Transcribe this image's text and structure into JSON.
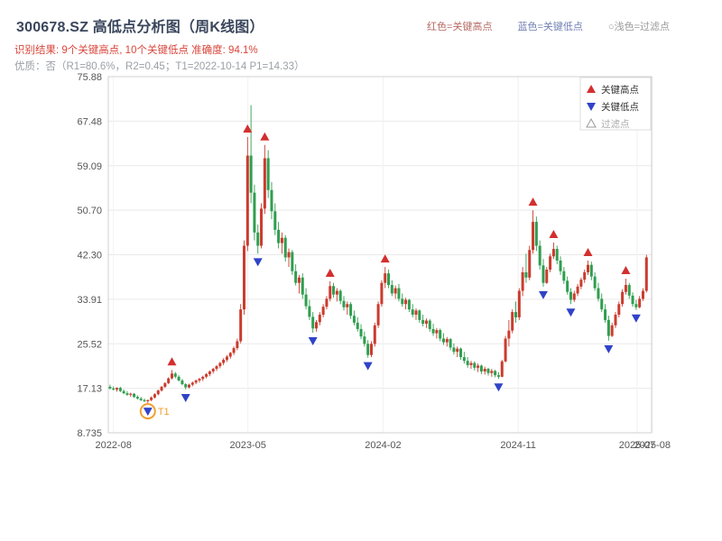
{
  "header": {
    "title": "300678.SZ 高低点分析图（周K线图）",
    "legend_inline": [
      {
        "label": "红色=关键高点",
        "color": "#b56a64"
      },
      {
        "label": "蓝色=关键低点",
        "color": "#7280b5"
      },
      {
        "label": "○浅色=过滤点",
        "color": "#999999"
      }
    ],
    "result_line": "识别结果: 9个关键高点, 10个关键低点  准确度: 94.1%",
    "quality_line": "优质：否（R1=80.6%，R2=0.45；T1=2022-10-14 P1=14.33）"
  },
  "chart_data": {
    "type": "candlestick",
    "title": "300678.SZ 高低点分析图（周K线图）",
    "frequency": "weekly",
    "start_date": "2022-07-25",
    "axis_weeks": 158,
    "ylim": [
      8.735,
      75.88
    ],
    "yticks": [
      "8.735",
      "17.13",
      "25.52",
      "33.91",
      "42.30",
      "50.70",
      "59.09",
      "67.48",
      "75.88"
    ],
    "xticks": [
      {
        "label": "2022-08",
        "week": 1
      },
      {
        "label": "2023-05",
        "week": 40.1
      },
      {
        "label": "2024-02",
        "week": 79.4
      },
      {
        "label": "2024-11",
        "week": 118.7
      },
      {
        "label": "2025-07",
        "week": 153.3
      },
      {
        "label": "2025-08",
        "week": 157.7
      }
    ],
    "up_color": "#cb3b2e",
    "down_color": "#2f9e4f",
    "key_high_color": "#d32f2f",
    "key_low_color": "#2f43c8",
    "grid": true,
    "legend_position": "top-right",
    "legend": [
      {
        "label": "关键高点",
        "marker": "up-triangle",
        "color": "#d32f2f",
        "text_color": "#333333"
      },
      {
        "label": "关键低点",
        "marker": "down-triangle",
        "color": "#2f43c8",
        "text_color": "#333333"
      },
      {
        "label": "过滤点",
        "marker": "hollow-up-triangle",
        "color": "#999999",
        "text_color": "#aaaaaa"
      }
    ],
    "candles": [
      [
        17.4,
        17.8,
        16.9,
        17.1
      ],
      [
        17.1,
        17.5,
        16.7,
        16.9
      ],
      [
        16.9,
        17.3,
        16.5,
        17.2
      ],
      [
        17.2,
        17.4,
        16.4,
        16.6
      ],
      [
        16.6,
        16.9,
        16.0,
        16.2
      ],
      [
        16.2,
        16.6,
        15.7,
        15.9
      ],
      [
        15.9,
        16.3,
        15.5,
        16.1
      ],
      [
        16.1,
        16.2,
        15.3,
        15.5
      ],
      [
        15.5,
        15.8,
        15.0,
        15.2
      ],
      [
        15.2,
        15.5,
        14.7,
        14.9
      ],
      [
        14.9,
        15.2,
        14.5,
        14.7
      ],
      [
        14.7,
        15.0,
        14.33,
        14.9
      ],
      [
        14.9,
        15.6,
        14.7,
        15.4
      ],
      [
        15.4,
        16.2,
        15.2,
        16.0
      ],
      [
        16.0,
        16.9,
        15.8,
        16.7
      ],
      [
        16.7,
        17.6,
        16.5,
        17.4
      ],
      [
        17.4,
        18.3,
        17.2,
        18.1
      ],
      [
        18.1,
        19.2,
        17.9,
        19.0
      ],
      [
        19.0,
        20.6,
        18.8,
        19.9
      ],
      [
        19.9,
        20.2,
        19.0,
        19.3
      ],
      [
        19.3,
        19.6,
        18.4,
        18.6
      ],
      [
        18.6,
        18.9,
        17.7,
        17.9
      ],
      [
        17.9,
        18.1,
        16.9,
        17.3
      ],
      [
        17.3,
        18.0,
        17.1,
        17.8
      ],
      [
        17.8,
        18.4,
        17.5,
        18.2
      ],
      [
        18.2,
        18.8,
        17.9,
        18.6
      ],
      [
        18.6,
        19.1,
        18.2,
        18.9
      ],
      [
        18.9,
        19.5,
        18.5,
        19.3
      ],
      [
        19.3,
        20.0,
        19.0,
        19.8
      ],
      [
        19.8,
        20.5,
        19.4,
        20.3
      ],
      [
        20.3,
        21.0,
        19.9,
        20.8
      ],
      [
        20.8,
        21.5,
        20.4,
        21.3
      ],
      [
        21.3,
        22.1,
        20.9,
        21.9
      ],
      [
        21.9,
        22.8,
        21.5,
        22.5
      ],
      [
        22.5,
        23.4,
        22.1,
        23.1
      ],
      [
        23.1,
        24.0,
        22.7,
        23.8
      ],
      [
        23.8,
        25.0,
        23.4,
        24.7
      ],
      [
        24.7,
        26.5,
        24.3,
        26.0
      ],
      [
        26.0,
        33.0,
        25.6,
        32.0
      ],
      [
        32.0,
        45.0,
        31.0,
        44.0
      ],
      [
        44.0,
        64.5,
        43.0,
        61.0
      ],
      [
        61.0,
        70.5,
        52.0,
        54.0
      ],
      [
        54.0,
        55.5,
        45.0,
        46.5
      ],
      [
        46.5,
        48.0,
        42.5,
        44.0
      ],
      [
        44.0,
        52.0,
        43.5,
        51.0
      ],
      [
        51.0,
        63.0,
        50.0,
        60.5
      ],
      [
        60.5,
        62.0,
        53.0,
        54.5
      ],
      [
        54.5,
        56.0,
        49.0,
        50.5
      ],
      [
        50.5,
        52.0,
        46.0,
        47.0
      ],
      [
        47.0,
        48.5,
        43.5,
        44.5
      ],
      [
        44.5,
        46.5,
        42.5,
        45.5
      ],
      [
        45.5,
        46.0,
        41.0,
        41.8
      ],
      [
        41.8,
        43.5,
        40.0,
        42.8
      ],
      [
        42.8,
        43.2,
        38.5,
        39.2
      ],
      [
        39.2,
        40.5,
        36.5,
        37.0
      ],
      [
        37.0,
        38.5,
        35.0,
        38.0
      ],
      [
        38.0,
        38.8,
        34.0,
        34.8
      ],
      [
        34.8,
        36.0,
        32.0,
        32.6
      ],
      [
        32.6,
        33.8,
        30.0,
        30.6
      ],
      [
        30.6,
        31.5,
        27.6,
        28.4
      ],
      [
        28.4,
        30.0,
        27.8,
        29.6
      ],
      [
        29.6,
        31.5,
        29.0,
        31.0
      ],
      [
        31.0,
        33.0,
        30.5,
        32.5
      ],
      [
        32.5,
        34.5,
        32.0,
        34.0
      ],
      [
        34.0,
        37.3,
        33.5,
        36.4
      ],
      [
        36.4,
        37.0,
        34.2,
        34.8
      ],
      [
        34.8,
        36.0,
        33.5,
        35.5
      ],
      [
        35.5,
        35.8,
        33.0,
        33.6
      ],
      [
        33.6,
        34.5,
        31.8,
        32.4
      ],
      [
        32.4,
        33.5,
        31.0,
        33.0
      ],
      [
        33.0,
        33.4,
        30.2,
        30.8
      ],
      [
        30.8,
        31.8,
        29.0,
        29.5
      ],
      [
        29.5,
        30.5,
        27.8,
        28.3
      ],
      [
        28.3,
        29.2,
        26.4,
        26.9
      ],
      [
        26.9,
        27.8,
        25.0,
        25.5
      ],
      [
        25.5,
        26.2,
        22.9,
        23.4
      ],
      [
        23.4,
        26.0,
        23.0,
        25.5
      ],
      [
        25.5,
        29.5,
        25.0,
        29.0
      ],
      [
        29.0,
        33.5,
        28.5,
        33.0
      ],
      [
        33.0,
        37.5,
        32.5,
        37.0
      ],
      [
        37.0,
        40.0,
        36.0,
        38.8
      ],
      [
        38.8,
        39.5,
        36.0,
        36.6
      ],
      [
        36.6,
        37.5,
        34.5,
        35.0
      ],
      [
        35.0,
        36.5,
        34.0,
        36.0
      ],
      [
        36.0,
        36.8,
        33.5,
        34.0
      ],
      [
        34.0,
        35.0,
        32.5,
        33.0
      ],
      [
        33.0,
        34.2,
        32.0,
        33.8
      ],
      [
        33.8,
        34.0,
        31.5,
        32.0
      ],
      [
        32.0,
        33.0,
        30.5,
        31.0
      ],
      [
        31.0,
        32.2,
        30.0,
        31.8
      ],
      [
        31.8,
        32.0,
        29.5,
        30.0
      ],
      [
        30.0,
        31.0,
        28.8,
        29.3
      ],
      [
        29.3,
        30.3,
        28.5,
        29.9
      ],
      [
        29.9,
        30.2,
        27.8,
        28.3
      ],
      [
        28.3,
        29.3,
        27.0,
        27.5
      ],
      [
        27.5,
        28.5,
        26.5,
        28.1
      ],
      [
        28.1,
        28.4,
        26.0,
        26.5
      ],
      [
        26.5,
        27.5,
        25.3,
        25.8
      ],
      [
        25.8,
        26.8,
        25.0,
        26.4
      ],
      [
        26.4,
        26.6,
        24.3,
        24.8
      ],
      [
        24.8,
        25.6,
        23.5,
        24.0
      ],
      [
        24.0,
        25.0,
        23.0,
        24.6
      ],
      [
        24.6,
        24.8,
        22.5,
        23.0
      ],
      [
        23.0,
        24.0,
        21.8,
        22.3
      ],
      [
        22.3,
        23.0,
        21.0,
        21.5
      ],
      [
        21.5,
        22.3,
        20.8,
        21.9
      ],
      [
        21.9,
        22.2,
        20.5,
        21.0
      ],
      [
        21.0,
        21.8,
        20.2,
        21.4
      ],
      [
        21.4,
        21.6,
        19.8,
        20.3
      ],
      [
        20.3,
        21.2,
        19.7,
        20.8
      ],
      [
        20.8,
        21.0,
        19.5,
        20.0
      ],
      [
        20.0,
        20.8,
        19.3,
        20.4
      ],
      [
        20.4,
        20.6,
        19.2,
        19.6
      ],
      [
        19.6,
        20.2,
        18.9,
        19.3
      ],
      [
        19.3,
        22.5,
        19.2,
        22.2
      ],
      [
        22.2,
        27.0,
        22.0,
        26.5
      ],
      [
        26.5,
        30.0,
        25.0,
        28.0
      ],
      [
        28.0,
        32.0,
        27.5,
        31.5
      ],
      [
        31.5,
        33.5,
        29.5,
        30.5
      ],
      [
        30.5,
        36.0,
        30.0,
        35.5
      ],
      [
        35.5,
        40.0,
        34.5,
        39.0
      ],
      [
        39.0,
        42.5,
        37.0,
        38.0
      ],
      [
        38.0,
        44.0,
        37.5,
        43.2
      ],
      [
        43.2,
        50.7,
        42.5,
        48.5
      ],
      [
        48.5,
        49.5,
        43.0,
        44.0
      ],
      [
        44.0,
        45.0,
        39.5,
        40.3
      ],
      [
        40.3,
        41.5,
        36.3,
        37.0
      ],
      [
        37.0,
        40.0,
        36.8,
        39.5
      ],
      [
        39.5,
        42.5,
        39.0,
        42.0
      ],
      [
        42.0,
        44.6,
        41.5,
        43.4
      ],
      [
        43.4,
        44.0,
        40.5,
        41.2
      ],
      [
        41.2,
        42.0,
        38.5,
        39.2
      ],
      [
        39.2,
        40.0,
        36.8,
        37.4
      ],
      [
        37.4,
        38.2,
        34.8,
        35.3
      ],
      [
        35.3,
        36.0,
        33.0,
        33.8
      ],
      [
        33.8,
        35.5,
        33.4,
        35.0
      ],
      [
        35.0,
        36.8,
        34.5,
        36.3
      ],
      [
        36.3,
        38.0,
        35.8,
        37.6
      ],
      [
        37.6,
        39.5,
        37.0,
        39.0
      ],
      [
        39.0,
        41.2,
        38.5,
        40.4
      ],
      [
        40.4,
        41.0,
        37.5,
        38.2
      ],
      [
        38.2,
        39.0,
        35.5,
        36.0
      ],
      [
        36.0,
        37.0,
        33.5,
        34.0
      ],
      [
        34.0,
        35.0,
        31.5,
        32.0
      ],
      [
        32.0,
        33.0,
        29.5,
        30.0
      ],
      [
        30.0,
        30.8,
        26.1,
        27.0
      ],
      [
        27.0,
        29.5,
        26.8,
        29.0
      ],
      [
        29.0,
        31.5,
        28.5,
        31.0
      ],
      [
        31.0,
        33.5,
        30.5,
        33.0
      ],
      [
        33.0,
        35.8,
        32.5,
        35.3
      ],
      [
        35.3,
        37.8,
        34.8,
        36.6
      ],
      [
        36.6,
        37.0,
        34.0,
        34.6
      ],
      [
        34.6,
        35.2,
        32.5,
        33.0
      ],
      [
        33.0,
        33.8,
        31.9,
        32.4
      ],
      [
        32.4,
        34.5,
        32.2,
        34.0
      ],
      [
        34.0,
        36.0,
        33.6,
        35.5
      ],
      [
        35.5,
        42.3,
        35.2,
        41.8
      ]
    ],
    "key_highs": [
      {
        "week": 18,
        "price": 20.6
      },
      {
        "week": 40,
        "price": 64.5
      },
      {
        "week": 45,
        "price": 63.0
      },
      {
        "week": 64,
        "price": 37.3
      },
      {
        "week": 80,
        "price": 40.0
      },
      {
        "week": 123,
        "price": 50.7
      },
      {
        "week": 129,
        "price": 44.6
      },
      {
        "week": 139,
        "price": 41.2
      },
      {
        "week": 150,
        "price": 37.8
      }
    ],
    "key_lows": [
      {
        "week": 11,
        "price": 14.33
      },
      {
        "week": 22,
        "price": 16.9
      },
      {
        "week": 43,
        "price": 42.5
      },
      {
        "week": 59,
        "price": 27.6
      },
      {
        "week": 75,
        "price": 22.9
      },
      {
        "week": 113,
        "price": 18.9
      },
      {
        "week": 126,
        "price": 36.3
      },
      {
        "week": 134,
        "price": 33.0
      },
      {
        "week": 145,
        "price": 26.1
      },
      {
        "week": 153,
        "price": 31.9
      }
    ],
    "t1": {
      "label": "T1",
      "date": "2022-10-14",
      "week": 11,
      "price": 14.33,
      "color": "#f0a030"
    }
  }
}
